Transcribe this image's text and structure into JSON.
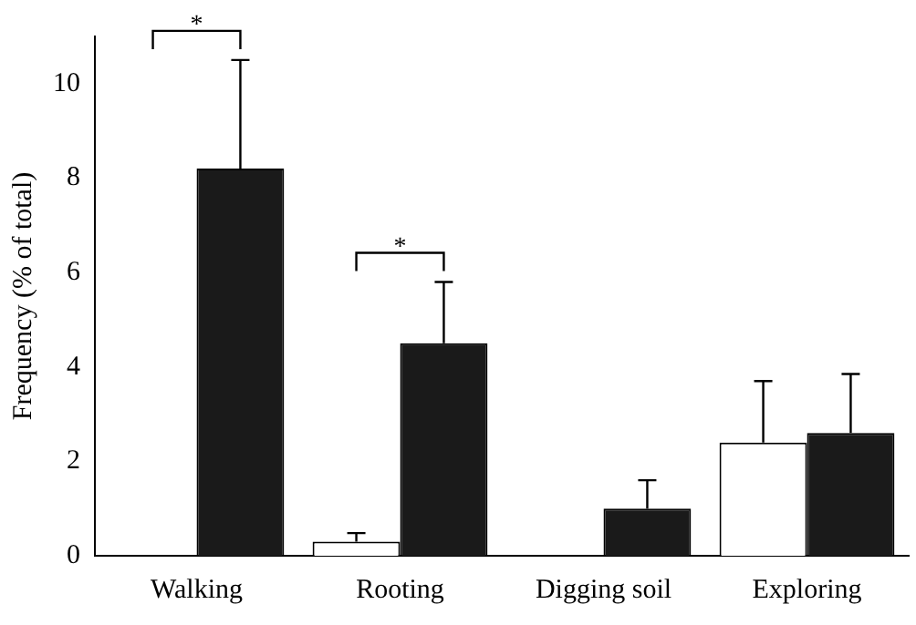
{
  "chart_data": {
    "type": "bar",
    "ylabel": "Frequency (% of total)",
    "categories": [
      "Walking",
      "Rooting",
      "Digging soil",
      "Exploring"
    ],
    "series": [
      {
        "color": "#ffffff",
        "values": [
          0,
          0.3,
          0,
          2.4
        ],
        "errors": [
          null,
          [
            0.3,
            0.48
          ],
          null,
          [
            2.4,
            3.7
          ]
        ]
      },
      {
        "color": "#1a1a1a",
        "values": [
          8.2,
          4.5,
          1.0,
          2.6
        ],
        "errors": [
          [
            8.2,
            10.5
          ],
          [
            4.5,
            5.8
          ],
          [
            1.0,
            1.6
          ],
          [
            2.6,
            3.85
          ]
        ]
      }
    ],
    "annotations": [
      "*",
      "*"
    ],
    "ylim": [
      0,
      11
    ],
    "yticks": [
      0,
      2,
      4,
      6,
      8,
      10
    ],
    "grid": false,
    "legend": false
  }
}
